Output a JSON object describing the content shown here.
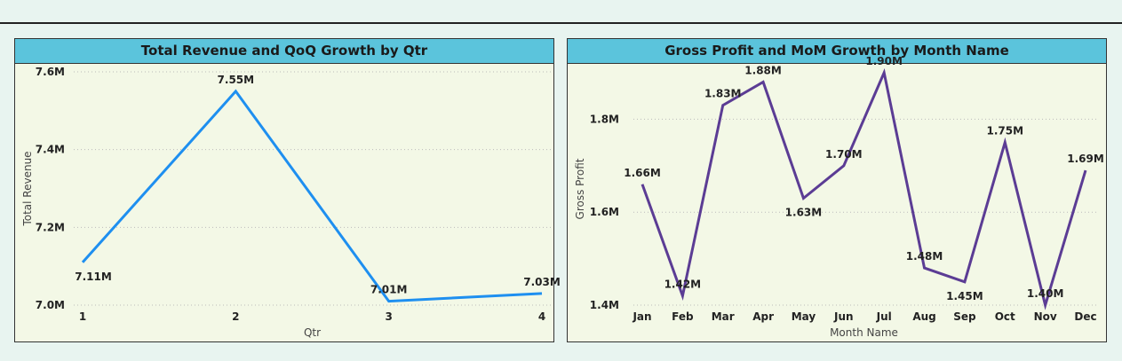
{
  "colors": {
    "line1": "#1e8ff0",
    "line2": "#5b3c94",
    "title_bg": "#5bc4dc",
    "panel_bg": "#f3f8e6"
  },
  "chart_data": [
    {
      "type": "line",
      "title": "Total Revenue and QoQ Growth by Qtr",
      "xlabel": "Qtr",
      "ylabel": "Total Revenue",
      "categories": [
        "1",
        "2",
        "3",
        "4"
      ],
      "values": [
        7.11,
        7.55,
        7.01,
        7.03
      ],
      "data_labels": [
        "7.11M",
        "7.55M",
        "7.01M",
        "7.03M"
      ],
      "ylim": [
        7.0,
        7.6
      ],
      "yticks": [
        7.0,
        7.2,
        7.4,
        7.6
      ],
      "ytick_labels": [
        "7.0M",
        "7.2M",
        "7.4M",
        "7.6M"
      ],
      "grid": true
    },
    {
      "type": "line",
      "title": "Gross Profit and MoM Growth by Month Name",
      "xlabel": "Month Name",
      "ylabel": "Gross Profit",
      "categories": [
        "Jan",
        "Feb",
        "Mar",
        "Apr",
        "May",
        "Jun",
        "Jul",
        "Aug",
        "Sep",
        "Oct",
        "Nov",
        "Dec"
      ],
      "values": [
        1.66,
        1.42,
        1.83,
        1.88,
        1.63,
        1.7,
        1.9,
        1.48,
        1.45,
        1.75,
        1.4,
        1.69
      ],
      "data_labels": [
        "1.66M",
        "1.42M",
        "1.83M",
        "1.88M",
        "1.63M",
        "1.70M",
        "1.90M",
        "1.48M",
        "1.45M",
        "1.75M",
        "1.40M",
        "1.69M"
      ],
      "ylim": [
        1.4,
        1.9
      ],
      "yticks": [
        1.4,
        1.6,
        1.8
      ],
      "ytick_labels": [
        "1.4M",
        "1.6M",
        "1.8M"
      ],
      "grid": true
    }
  ]
}
